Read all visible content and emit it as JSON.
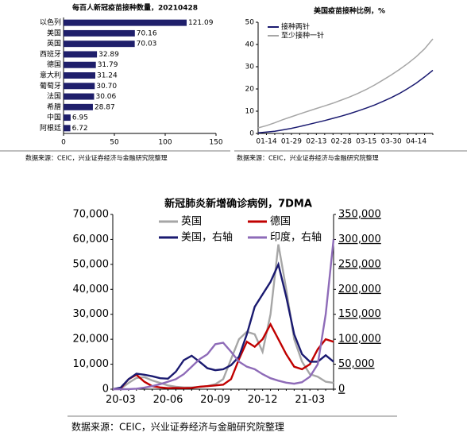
{
  "chart_data": [
    {
      "type": "hbar",
      "title": "每百人新冠疫苗接种数量，20210428",
      "categories": [
        "以色列",
        "美国",
        "英国",
        "西班牙",
        "德国",
        "意大利",
        "葡萄牙",
        "法国",
        "希腊",
        "中国",
        "阿根廷"
      ],
      "values": [
        121.09,
        70.16,
        70.03,
        32.89,
        31.79,
        31.24,
        30.7,
        30.06,
        28.87,
        6.95,
        6.72
      ],
      "value_labels": [
        "121.09",
        "70.16",
        "70.03",
        "32.89",
        "31.79",
        "31.24",
        "30.70",
        "30.06",
        "28.87",
        "6.95",
        "6.72"
      ],
      "color": "#1f1f6b",
      "xlim": [
        0,
        150
      ],
      "xticks": [
        0,
        50,
        100,
        150
      ],
      "source": "数据来源：CEIC，兴业证券经济与金融研究院整理"
    },
    {
      "type": "line",
      "title": "美国疫苗接种比例，%",
      "categories": [
        null,
        "01-14",
        null,
        null,
        "01-29",
        null,
        null,
        "02-13",
        null,
        null,
        "02-28",
        null,
        null,
        "03-15",
        null,
        null,
        "03-30",
        null,
        null,
        "04-14",
        null,
        null
      ],
      "series": [
        {
          "name": "接种两针",
          "color": "#1a1a70",
          "values": [
            0.3,
            0.6,
            1.0,
            1.6,
            2.3,
            3.1,
            4.0,
            4.9,
            5.8,
            6.8,
            7.8,
            8.9,
            10.1,
            11.4,
            12.8,
            14.4,
            16.1,
            18.0,
            20.2,
            22.6,
            25.4,
            28.4
          ]
        },
        {
          "name": "至少接种一针",
          "color": "#a6a6a6",
          "values": [
            2.5,
            3.5,
            4.8,
            6.2,
            7.5,
            8.8,
            10.0,
            11.2,
            12.4,
            13.6,
            15.0,
            16.4,
            18.0,
            19.8,
            21.8,
            24.0,
            26.3,
            28.8,
            31.5,
            34.5,
            38.0,
            42.5
          ]
        }
      ],
      "ylim": [
        0,
        50
      ],
      "yticks": [
        0,
        10,
        20,
        30,
        40,
        50
      ],
      "legend": "top-left",
      "source": "数据来源：CEIC，兴业证券经济与金融研究院整理"
    },
    {
      "type": "line",
      "title": "新冠肺炎新增确诊病例，7DMA",
      "categories": [
        null,
        "20-03",
        null,
        null,
        null,
        null,
        null,
        "20-06",
        null,
        null,
        null,
        null,
        null,
        "20-09",
        null,
        null,
        null,
        null,
        null,
        "20-12",
        null,
        null,
        null,
        null,
        null,
        "21-03",
        null,
        null,
        null
      ],
      "series": [
        {
          "name": "英国",
          "color": "#a6a6a6",
          "values": [
            0,
            200,
            2500,
            4500,
            4800,
            3500,
            2500,
            1500,
            1000,
            700,
            700,
            900,
            1200,
            2000,
            4000,
            12000,
            20000,
            23000,
            22000,
            15000,
            30000,
            58000,
            40000,
            20000,
            11000,
            6000,
            5000,
            3000,
            2500
          ]
        },
        {
          "name": "德国",
          "color": "#c00000",
          "values": [
            0,
            300,
            4000,
            5800,
            3000,
            1200,
            700,
            400,
            500,
            400,
            500,
            1000,
            1200,
            1500,
            1800,
            4000,
            12000,
            19000,
            17000,
            20000,
            26000,
            20000,
            14000,
            9000,
            8000,
            10000,
            16000,
            20000,
            19000
          ]
        },
        {
          "name": "美国，右轴",
          "color": "#1a1a70",
          "axis": "y2",
          "values": [
            0,
            3000,
            20000,
            31000,
            29000,
            26000,
            22000,
            21000,
            35000,
            58000,
            67000,
            55000,
            42000,
            38000,
            40000,
            48000,
            65000,
            110000,
            165000,
            190000,
            215000,
            250000,
            185000,
            110000,
            70000,
            55000,
            55000,
            68000,
            55000
          ]
        },
        {
          "name": "印度，右轴",
          "color": "#8e6bb8",
          "axis": "y2",
          "values": [
            0,
            50,
            200,
            1000,
            3000,
            6000,
            10000,
            15000,
            20000,
            30000,
            45000,
            60000,
            70000,
            90000,
            93000,
            75000,
            55000,
            45000,
            40000,
            30000,
            22000,
            17000,
            13000,
            11000,
            14000,
            25000,
            50000,
            150000,
            300000
          ]
        }
      ],
      "ylim": [
        0,
        70000
      ],
      "yticks": [
        0,
        {
          "value": 10000,
          "label": "10,000"
        },
        {
          "value": 20000,
          "label": "20,000"
        },
        {
          "value": 30000,
          "label": "30,000"
        },
        {
          "value": 40000,
          "label": "40,000"
        },
        {
          "value": 50000,
          "label": "50,000"
        },
        {
          "value": 60000,
          "label": "60,000"
        },
        {
          "value": 70000,
          "label": "70,000"
        }
      ],
      "y2lim": [
        0,
        350000
      ],
      "y2ticks": [
        0,
        {
          "value": 50000,
          "label": "50,000"
        },
        {
          "value": 100000,
          "label": "100,000"
        },
        {
          "value": 150000,
          "label": "150,000"
        },
        {
          "value": 200000,
          "label": "200,000"
        },
        {
          "value": 250000,
          "label": "250,000"
        },
        {
          "value": 300000,
          "label": "300,000"
        },
        {
          "value": 350000,
          "label": "350,000"
        }
      ],
      "legend": "top",
      "source": "数据来源：CEIC，兴业证券经济与金融研究院整理"
    }
  ]
}
